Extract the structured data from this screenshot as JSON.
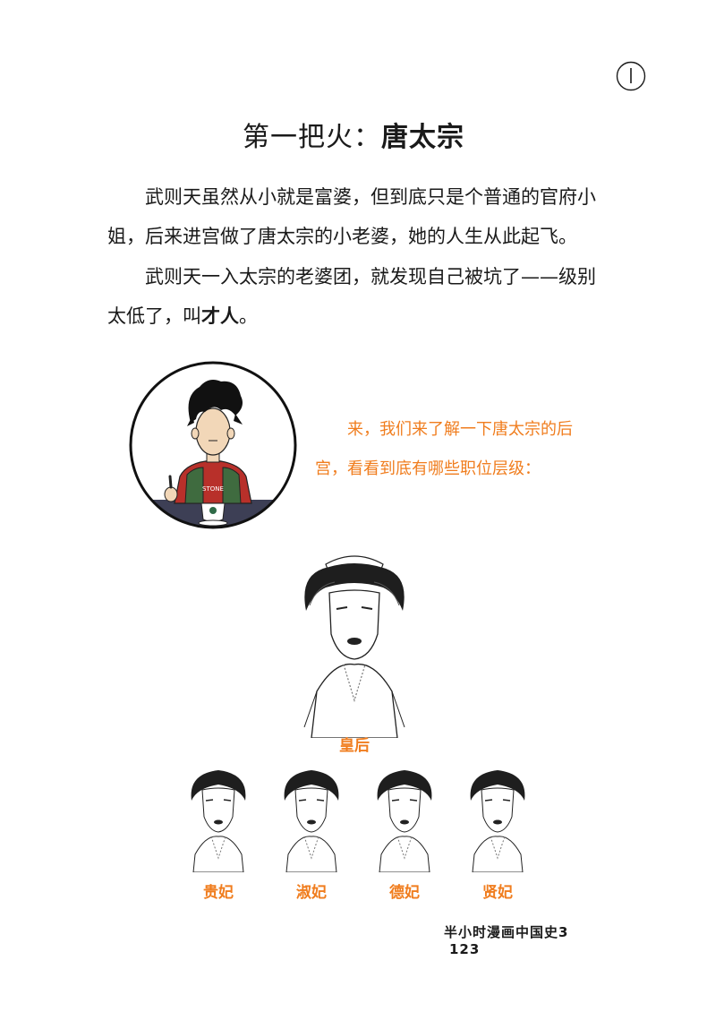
{
  "header": {
    "icon": "clock-icon"
  },
  "title": {
    "prefix": "第一把火：",
    "emphasis": "唐太宗"
  },
  "paragraphs": {
    "p1": "武则天虽然从小就是富婆，但到底只是个普通的官府小姐，后来进宫做了唐太宗的小老婆，她的人生从此起飞。",
    "p2_text": "武则天一入太宗的老婆团，就发现自己被坑了——级别太低了，叫",
    "p2_bold": "才人",
    "p2_end": "。"
  },
  "speech": "来，我们来了解一下唐太宗的后宫，看看到底有哪些职位层级：",
  "avatar": {
    "shirt_text": "STONE"
  },
  "hierarchy": {
    "empress": "皇后",
    "consorts": [
      "贵妃",
      "淑妃",
      "德妃",
      "贤妃"
    ]
  },
  "footer": {
    "book_title": "半小时漫画中国史3",
    "page_number": "123"
  },
  "colors": {
    "accent": "#f07d1e",
    "text": "#1a1a1a"
  }
}
